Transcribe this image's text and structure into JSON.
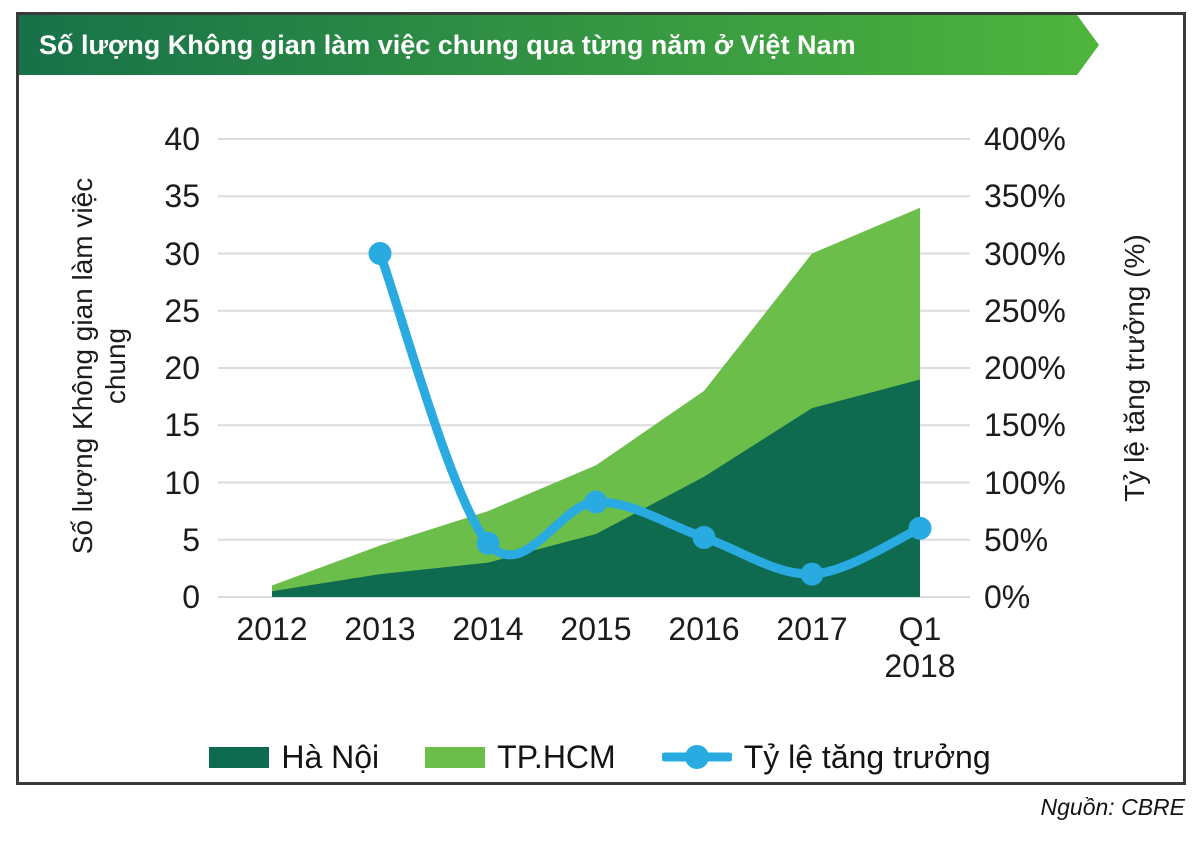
{
  "title": "Số lượng Không gian làm việc chung qua từng năm ở Việt Nam",
  "source": "Nguồn: CBRE",
  "legend": {
    "hanoi_label": "Hà Nội",
    "hcm_label": "TP.HCM",
    "growth_label": "Tỷ lệ tăng trưởng"
  },
  "colors": {
    "banner_gradient_from": "#177149",
    "banner_gradient_to": "#4fb53c",
    "frame_border": "#3a3a3a",
    "hanoi_area": "#0e6b4f",
    "hcm_area": "#6cbe4b",
    "growth_line": "#29abe2",
    "gridline": "#dbdbdb",
    "title_text": "#ffffff",
    "body_text": "#1c1c1c"
  },
  "chart_data": {
    "type": "combo_stacked_area_line",
    "title": "Số lượng Không gian làm việc chung qua từng năm ở Việt Nam",
    "categories": [
      "2012",
      "2013",
      "2014",
      "2015",
      "2016",
      "2017",
      "Q1 2018"
    ],
    "series": [
      {
        "name": "Hà Nội",
        "type": "area",
        "stacked": true,
        "axis": "left",
        "color": "#0e6b4f",
        "values": [
          0.5,
          2,
          3,
          5.5,
          10.5,
          16.5,
          19
        ]
      },
      {
        "name": "TP.HCM",
        "type": "area",
        "stacked": true,
        "axis": "left",
        "color": "#6cbe4b",
        "values": [
          0.5,
          2.5,
          4.5,
          6,
          7.5,
          13.5,
          15
        ]
      },
      {
        "name": "Tỷ lệ tăng trưởng",
        "type": "line",
        "axis": "right",
        "color": "#29abe2",
        "values_pct": [
          null,
          300,
          47,
          83,
          52,
          20,
          60
        ]
      }
    ],
    "stack_totals": [
      1,
      4.5,
      7.5,
      11.5,
      18,
      30,
      34
    ],
    "left_axis": {
      "label": "Số lượng Không gian làm việc chung",
      "label_lines": [
        "Số lượng Không gian làm việc",
        "chung"
      ],
      "min": 0,
      "max": 40,
      "step": 5,
      "tick_labels": [
        "0",
        "5",
        "10",
        "15",
        "20",
        "25",
        "30",
        "35",
        "40"
      ]
    },
    "right_axis": {
      "label": "Tỷ lệ tăng trưởng (%)",
      "min": 0,
      "max": 400,
      "step": 50,
      "tick_labels": [
        "0%",
        "50%",
        "100%",
        "150%",
        "200%",
        "250%",
        "300%",
        "350%",
        "400%"
      ]
    },
    "grid": true,
    "legend_position": "bottom"
  }
}
